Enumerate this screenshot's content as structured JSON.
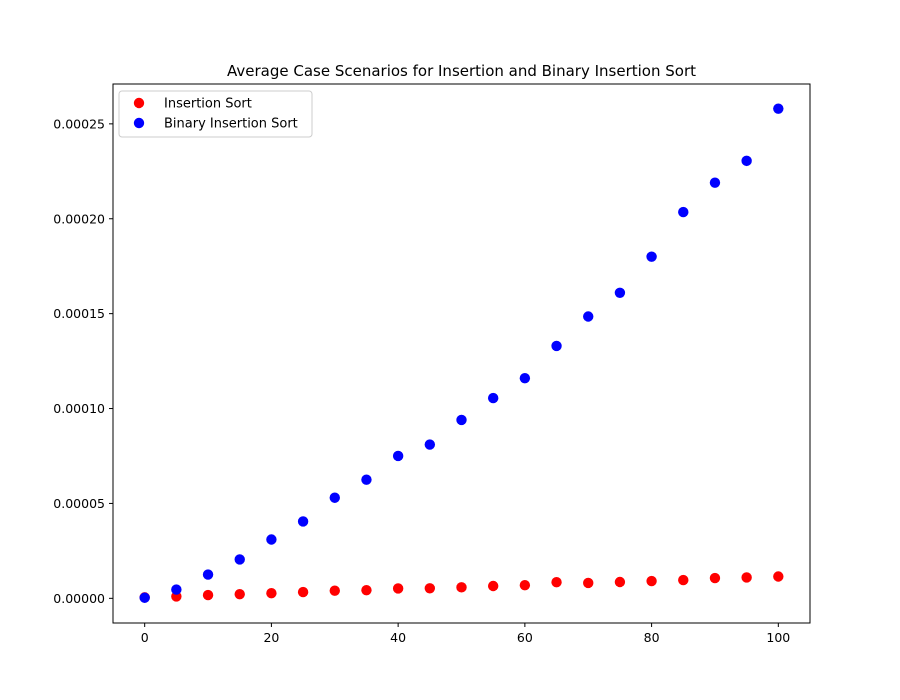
{
  "chart_data": {
    "type": "scatter",
    "title": "Average Case Scenarios for Insertion and Binary Insertion Sort",
    "xlabel": "",
    "ylabel": "",
    "xlim": [
      -5,
      105
    ],
    "ylim": [
      -1.3e-05,
      0.000271
    ],
    "xticks": [
      0,
      20,
      40,
      60,
      80,
      100
    ],
    "xtick_labels": [
      "0",
      "20",
      "40",
      "60",
      "80",
      "100"
    ],
    "yticks": [
      0,
      5e-05,
      0.0001,
      0.00015,
      0.0002,
      0.00025
    ],
    "ytick_labels": [
      "0.00000",
      "0.00005",
      "0.00010",
      "0.00015",
      "0.00020",
      "0.00025"
    ],
    "grid": false,
    "legend_position": "top-left",
    "x": [
      0,
      5,
      10,
      15,
      20,
      25,
      30,
      35,
      40,
      45,
      50,
      55,
      60,
      65,
      70,
      75,
      80,
      85,
      90,
      95,
      100
    ],
    "series": [
      {
        "name": "Insertion Sort",
        "color": "#ff0000",
        "values": [
          5e-07,
          1e-06,
          1.7e-06,
          2.2e-06,
          2.7e-06,
          3.3e-06,
          4e-06,
          4.3e-06,
          5.2e-06,
          5.3e-06,
          5.8e-06,
          6.5e-06,
          6.9e-06,
          8.5e-06,
          8.1e-06,
          8.6e-06,
          9.1e-06,
          9.6e-06,
          1.07e-05,
          1.1e-05,
          1.15e-05
        ]
      },
      {
        "name": "Binary Insertion Sort",
        "color": "#0000ff",
        "values": [
          3e-07,
          4.6e-06,
          1.25e-05,
          2.05e-05,
          3.1e-05,
          4.05e-05,
          5.3e-05,
          6.25e-05,
          7.5e-05,
          8.1e-05,
          9.4e-05,
          0.0001055,
          0.000116,
          0.000133,
          0.0001485,
          0.000161,
          0.00018,
          0.0002035,
          0.000219,
          0.0002305,
          0.000258
        ]
      }
    ]
  }
}
